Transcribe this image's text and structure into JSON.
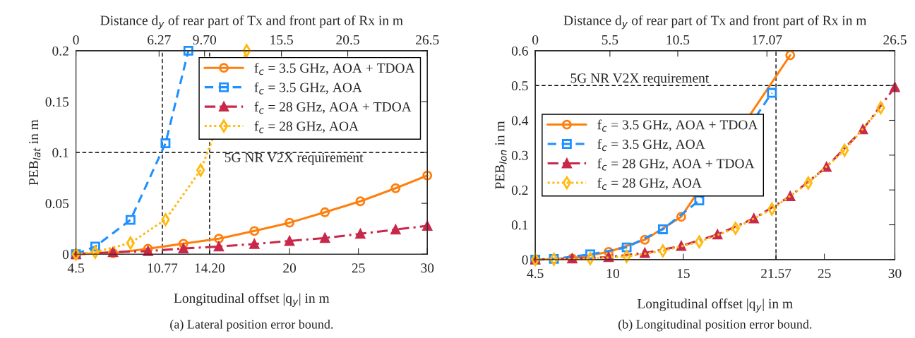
{
  "chart_data": [
    {
      "type": "line",
      "xlabel": "Longitudinal offset |q$_{y}$| in m",
      "ylabel": "PEB$_{lat}$ in m",
      "x2label": "Distance d$_{y}$ of rear part of Tx and front part of Rx in m",
      "xlim": [
        4.5,
        30
      ],
      "xticks": [
        4.5,
        10.77,
        {
          "value": 14.2,
          "label": "14.20"
        },
        20,
        25,
        30
      ],
      "x2lim": [
        0,
        26.5
      ],
      "x2ticks": [
        0,
        6.27,
        {
          "value": 9.7,
          "label": "9.70"
        },
        15.5,
        20.5,
        26.5
      ],
      "ylim": [
        0,
        0.2
      ],
      "yticks": [
        0,
        0.05,
        0.1,
        0.15,
        0.2
      ],
      "grid": false,
      "legend": "top right",
      "series": [
        {
          "name": "f$_{c}$ = 3.5 GHz, AOA + TDOA",
          "color": "#ff7f0e",
          "line_style": "solid",
          "marker": "circle",
          "x": [
            4.5,
            7.19,
            9.73,
            12.3,
            14.87,
            17.45,
            20.0,
            22.57,
            25.14,
            27.7,
            30
          ],
          "values": [
            0,
            0.001,
            0.0053,
            0.0103,
            0.0153,
            0.0228,
            0.0309,
            0.0412,
            0.052,
            0.0648,
            0.0773
          ]
        },
        {
          "name": "f$_{c}$ = 3.5 GHz, AOA",
          "color": "#1e90ff",
          "line_style": "dashed",
          "marker": "square",
          "x": [
            4.5,
            5.9,
            8.46,
            11.0,
            12.66
          ],
          "values": [
            0,
            0.0075,
            0.0337,
            0.109,
            0.2
          ]
        },
        {
          "name": "f$_{c}$ = 28 GHz, AOA + TDOA",
          "color": "#c8284a",
          "line_style": "dashdot",
          "marker": "triangle",
          "x": [
            4.5,
            7.19,
            9.73,
            12.3,
            14.87,
            17.45,
            20.0,
            22.57,
            25.14,
            27.7,
            30
          ],
          "values": [
            0,
            0.002,
            0.003,
            0.0056,
            0.0075,
            0.01,
            0.013,
            0.0159,
            0.02,
            0.0242,
            0.0278
          ]
        },
        {
          "name": "f$_{c}$ = 28 GHz, AOA",
          "color": "#ffb90f",
          "line_style": "dotted",
          "marker": "diamond",
          "x": [
            4.5,
            5.9,
            8.46,
            11.0,
            13.55,
            16.89
          ],
          "values": [
            0,
            0.002,
            0.011,
            0.034,
            0.0826,
            0.2
          ]
        }
      ],
      "ref_lines": [
        {
          "axis": "y",
          "value": 0.1,
          "color": "#000000",
          "line_style": "dashed",
          "label": "5G NR V2X requirement"
        },
        {
          "axis": "x",
          "value": 10.77,
          "color": "#000000",
          "line_style": "dashed"
        },
        {
          "axis": "x",
          "value": 14.2,
          "color": "#000000",
          "line_style": "dashed"
        }
      ],
      "annotations": [
        "(a) Lateral position error bound."
      ]
    },
    {
      "type": "line",
      "xlabel": "Longitudinal offset |q$_{y}$| in m",
      "ylabel": "PEB$_{lon}$ in m",
      "x2label": "Distance d$_{y}$ of rear part of Tx and front part of Rx in m",
      "xlim": [
        4.5,
        30
      ],
      "xticks": [
        4.5,
        10,
        15,
        21.57,
        25,
        30
      ],
      "x2lim": [
        0,
        26.5
      ],
      "x2ticks": [
        0,
        5.5,
        10.5,
        17.07,
        26.5
      ],
      "ylim": [
        0,
        0.6
      ],
      "yticks": [
        0,
        0.1,
        0.2,
        0.3,
        0.4,
        0.5,
        0.6
      ],
      "grid": false,
      "legend": "left",
      "series": [
        {
          "name": "f$_{c}$ = 3.5 GHz, AOA + TDOA",
          "color": "#ff7f0e",
          "line_style": "solid",
          "marker": "circle",
          "x": [
            4.5,
            7.12,
            9.7,
            12.27,
            14.85,
            17.42,
            20.0,
            22.58
          ],
          "values": [
            0,
            0.003,
            0.022,
            0.057,
            0.123,
            null,
            null,
            0.587
          ]
        },
        {
          "name": "f$_{c}$ = 3.5 GHz, AOA",
          "color": "#1e90ff",
          "line_style": "dashed",
          "marker": "square",
          "x": [
            4.5,
            5.82,
            8.4,
            10.98,
            13.55,
            16.13,
            18.7,
            21.28
          ],
          "values": [
            0,
            0.002,
            0.015,
            0.035,
            0.087,
            0.17,
            null,
            0.479
          ]
        },
        {
          "name": "f$_{c}$ = 28 GHz, AOA + TDOA",
          "color": "#c8284a",
          "line_style": "dashdot",
          "marker": "triangle",
          "x": [
            4.5,
            7.12,
            9.7,
            12.27,
            14.85,
            17.42,
            20.0,
            22.58,
            25.15,
            27.73,
            30
          ],
          "values": [
            0,
            0.003,
            0.007,
            0.019,
            0.039,
            0.072,
            0.118,
            0.182,
            0.266,
            0.374,
            0.495
          ]
        },
        {
          "name": "f$_{c}$ = 28 GHz, AOA",
          "color": "#ffb90f",
          "line_style": "dotted",
          "marker": "diamond",
          "x": [
            4.5,
            5.82,
            8.4,
            10.98,
            13.55,
            16.13,
            18.7,
            21.28,
            23.86,
            26.43,
            29.0
          ],
          "values": [
            0,
            0.001,
            0.003,
            0.009,
            0.025,
            0.051,
            0.09,
            0.145,
            0.22,
            0.314,
            0.436
          ]
        }
      ],
      "ref_lines": [
        {
          "axis": "y",
          "value": 0.5,
          "color": "#000000",
          "line_style": "dashed",
          "label": "5G NR V2X requirement"
        },
        {
          "axis": "x",
          "value": 21.57,
          "color": "#000000",
          "line_style": "dashed"
        }
      ],
      "annotations": [
        "(b) Longitudinal position error bound."
      ]
    }
  ]
}
